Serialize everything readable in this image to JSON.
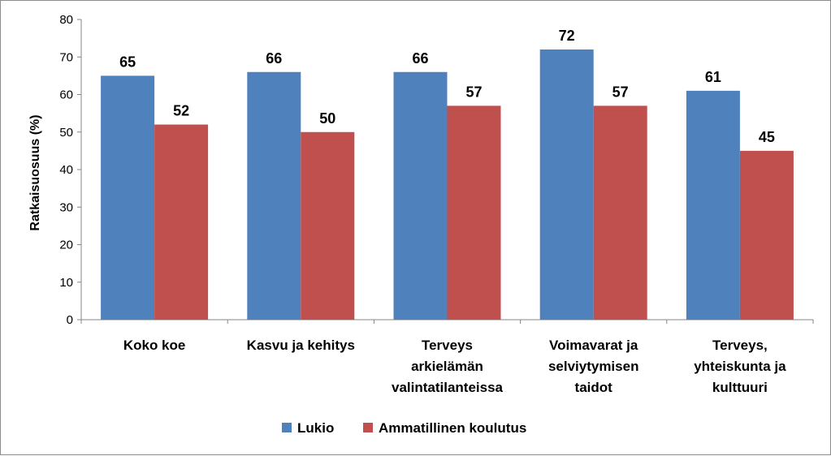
{
  "chart_data": {
    "type": "bar",
    "categories": [
      [
        "Koko koe"
      ],
      [
        "Kasvu ja kehitys"
      ],
      [
        "Terveys",
        "arkielämän",
        "valintatilanteissa"
      ],
      [
        "Voimavarat ja",
        "selviytymisen",
        "taidot"
      ],
      [
        "Terveys,",
        "yhteiskunta ja",
        "kulttuuri"
      ]
    ],
    "series": [
      {
        "name": "Lukio",
        "color": "#4f81bd",
        "values": [
          65,
          66,
          66,
          72,
          61
        ]
      },
      {
        "name": "Ammatillinen koulutus",
        "color": "#c0504d",
        "values": [
          52,
          50,
          57,
          57,
          45
        ]
      }
    ],
    "ylabel": "Ratkaisuosuus (%)",
    "ylim": [
      0,
      80
    ],
    "yticks": [
      0,
      10,
      20,
      30,
      40,
      50,
      60,
      70,
      80
    ],
    "grid": false,
    "legend": "bottom",
    "data_labels": true
  }
}
